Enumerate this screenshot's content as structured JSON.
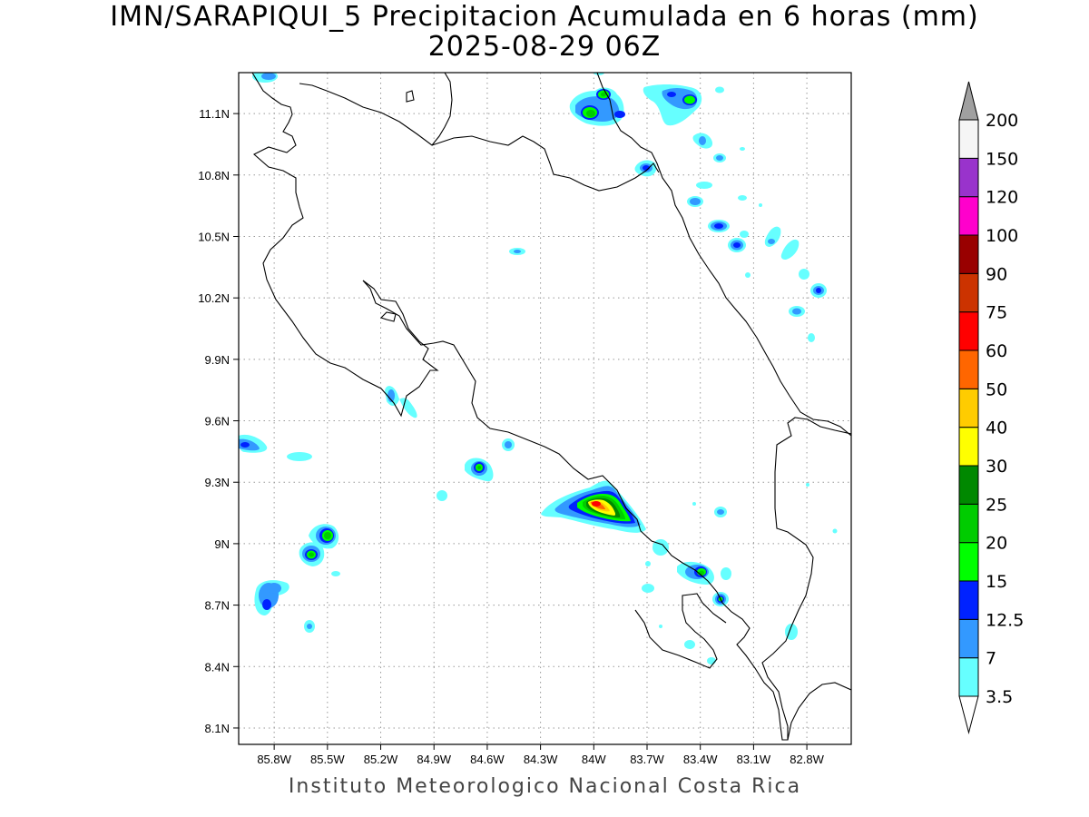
{
  "title": {
    "line1": "IMN/SARAPIQUI_5 Precipitacion Acumulada en 6 horas (mm)",
    "line2": "2025-08-29 06Z"
  },
  "footer": "Instituto Meteorologico Nacional Costa Rica",
  "map": {
    "lon_range": [
      -86.0,
      -82.55
    ],
    "lat_range": [
      8.02,
      11.3
    ],
    "lat_ticks": [
      {
        "value": 11.1,
        "label": "11.1N"
      },
      {
        "value": 10.8,
        "label": "10.8N"
      },
      {
        "value": 10.5,
        "label": "10.5N"
      },
      {
        "value": 10.2,
        "label": "10.2N"
      },
      {
        "value": 9.9,
        "label": "9.9N"
      },
      {
        "value": 9.6,
        "label": "9.6N"
      },
      {
        "value": 9.3,
        "label": "9.3N"
      },
      {
        "value": 9.0,
        "label": "9N"
      },
      {
        "value": 8.7,
        "label": "8.7N"
      },
      {
        "value": 8.4,
        "label": "8.4N"
      },
      {
        "value": 8.1,
        "label": "8.1N"
      }
    ],
    "lon_ticks": [
      {
        "value": -85.8,
        "label": "85.8W"
      },
      {
        "value": -85.5,
        "label": "85.5W"
      },
      {
        "value": -85.2,
        "label": "85.2W"
      },
      {
        "value": -84.9,
        "label": "84.9W"
      },
      {
        "value": -84.6,
        "label": "84.6W"
      },
      {
        "value": -84.3,
        "label": "84.3W"
      },
      {
        "value": -84.0,
        "label": "84W"
      },
      {
        "value": -83.7,
        "label": "83.7W"
      },
      {
        "value": -83.4,
        "label": "83.4W"
      },
      {
        "value": -83.1,
        "label": "83.1W"
      },
      {
        "value": -82.8,
        "label": "82.8W"
      }
    ],
    "grid": "dotted"
  },
  "legend": {
    "levels": [
      "3.5",
      "7",
      "12.5",
      "15",
      "20",
      "25",
      "30",
      "40",
      "50",
      "60",
      "75",
      "90",
      "100",
      "120",
      "150",
      "200"
    ],
    "colors": [
      "#66ffff",
      "#3399ff",
      "#0022ff",
      "#00ff00",
      "#00cc00",
      "#008800",
      "#ffff00",
      "#ffcc00",
      "#ff6600",
      "#ff0000",
      "#cc3300",
      "#990000",
      "#ff00cc",
      "#9933cc",
      "#f5f5f5",
      "#a0a0a0"
    ],
    "arrow_top": "gray",
    "arrow_bottom": "white"
  },
  "precip_cells": [
    {
      "lon": -83.9,
      "lat": 9.16,
      "max_mm": 40
    },
    {
      "lon": -83.97,
      "lat": 11.11,
      "max_mm": 20
    },
    {
      "lon": -83.91,
      "lat": 11.2,
      "max_mm": 20
    },
    {
      "lon": -83.37,
      "lat": 11.17,
      "max_mm": 20
    },
    {
      "lon": -83.75,
      "lat": 10.84,
      "max_mm": 15
    },
    {
      "lon": -84.6,
      "lat": 9.37,
      "max_mm": 20
    },
    {
      "lon": -85.48,
      "lat": 9.03,
      "max_mm": 20
    },
    {
      "lon": -85.58,
      "lat": 8.9,
      "max_mm": 20
    },
    {
      "lon": -85.79,
      "lat": 8.72,
      "max_mm": 15
    },
    {
      "lon": -85.89,
      "lat": 9.47,
      "max_mm": 15
    },
    {
      "lon": -83.33,
      "lat": 8.84,
      "max_mm": 20
    },
    {
      "lon": -83.25,
      "lat": 8.71,
      "max_mm": 20
    },
    {
      "lon": -82.69,
      "lat": 10.23,
      "max_mm": 15
    },
    {
      "lon": -83.11,
      "lat": 10.45,
      "max_mm": 15
    },
    {
      "lon": -83.22,
      "lat": 10.54,
      "max_mm": 15
    }
  ]
}
